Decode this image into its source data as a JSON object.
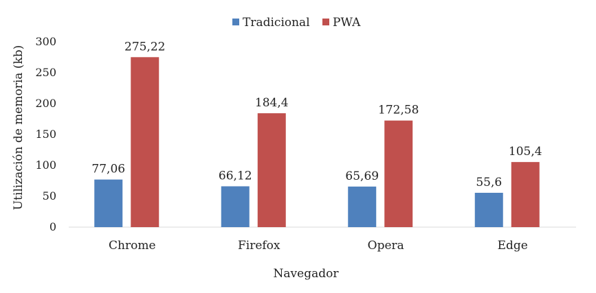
{
  "chart_data": {
    "type": "bar",
    "title": "",
    "xlabel": "Navegador",
    "ylabel": "Utilización de memoria (kb)",
    "ylim": [
      0,
      300
    ],
    "yticks": [
      0,
      50,
      100,
      150,
      200,
      250,
      300
    ],
    "grid": false,
    "legend_position": "top",
    "categories": [
      "Chrome",
      "Firefox",
      "Opera",
      "Edge"
    ],
    "series": [
      {
        "name": "Tradicional",
        "color": "#4f81bd",
        "values": [
          77.06,
          66.12,
          65.69,
          55.6
        ],
        "labels": [
          "77,06",
          "66,12",
          "65,69",
          "55,6"
        ]
      },
      {
        "name": "PWA",
        "color": "#c0504d",
        "values": [
          275.22,
          184.4,
          172.58,
          105.4
        ],
        "labels": [
          "275,22",
          "184,4",
          "172,58",
          "105,4"
        ]
      }
    ]
  }
}
